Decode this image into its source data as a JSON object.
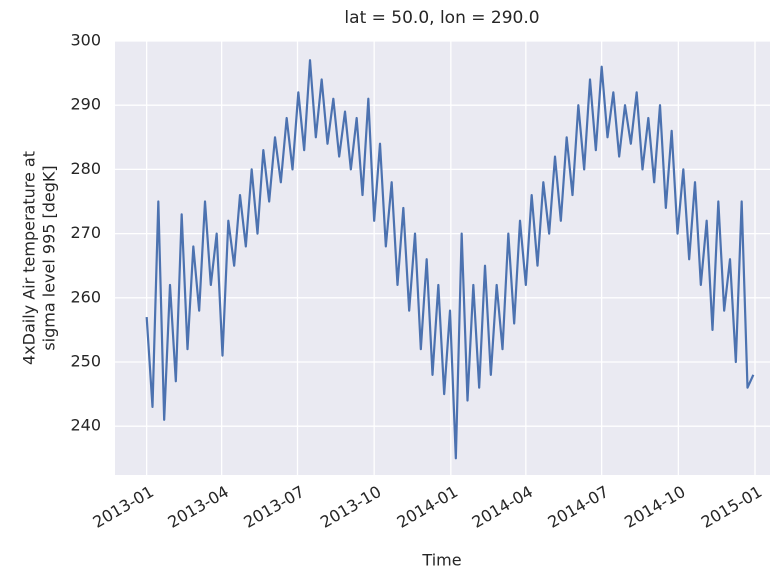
{
  "chart_data": {
    "type": "line",
    "title": "lat = 50.0, lon = 290.0",
    "xlabel": "Time",
    "ylabel": [
      "4xDaily Air temperature at",
      "sigma level 995 [degK]"
    ],
    "color": "#4c72b0",
    "grid": true,
    "xlim": [
      "2012-11-24",
      "2015-01-19"
    ],
    "ylim": [
      232.4,
      300
    ],
    "yticks": [
      240,
      250,
      260,
      270,
      280,
      290,
      300
    ],
    "xticks": [
      {
        "value": "2013-01-01",
        "label": "2013-01"
      },
      {
        "value": "2013-04-01",
        "label": "2013-04"
      },
      {
        "value": "2013-07-01",
        "label": "2013-07"
      },
      {
        "value": "2013-10-01",
        "label": "2013-10"
      },
      {
        "value": "2014-01-01",
        "label": "2014-01"
      },
      {
        "value": "2014-04-01",
        "label": "2014-04"
      },
      {
        "value": "2014-07-01",
        "label": "2014-07"
      },
      {
        "value": "2014-10-01",
        "label": "2014-10"
      },
      {
        "value": "2015-01-01",
        "label": "2015-01"
      }
    ],
    "x": [
      "2013-01-01",
      "2013-01-08",
      "2013-01-15",
      "2013-01-22",
      "2013-01-29",
      "2013-02-05",
      "2013-02-12",
      "2013-02-19",
      "2013-02-26",
      "2013-03-05",
      "2013-03-12",
      "2013-03-19",
      "2013-03-26",
      "2013-04-02",
      "2013-04-09",
      "2013-04-16",
      "2013-04-23",
      "2013-04-30",
      "2013-05-07",
      "2013-05-14",
      "2013-05-21",
      "2013-05-28",
      "2013-06-04",
      "2013-06-11",
      "2013-06-18",
      "2013-06-25",
      "2013-07-02",
      "2013-07-09",
      "2013-07-16",
      "2013-07-23",
      "2013-07-30",
      "2013-08-06",
      "2013-08-13",
      "2013-08-20",
      "2013-08-27",
      "2013-09-03",
      "2013-09-10",
      "2013-09-17",
      "2013-09-24",
      "2013-10-01",
      "2013-10-08",
      "2013-10-15",
      "2013-10-22",
      "2013-10-29",
      "2013-11-05",
      "2013-11-12",
      "2013-11-19",
      "2013-11-26",
      "2013-12-03",
      "2013-12-10",
      "2013-12-17",
      "2013-12-24",
      "2013-12-31",
      "2014-01-07",
      "2014-01-14",
      "2014-01-21",
      "2014-01-28",
      "2014-02-04",
      "2014-02-11",
      "2014-02-18",
      "2014-02-25",
      "2014-03-04",
      "2014-03-11",
      "2014-03-18",
      "2014-03-25",
      "2014-04-01",
      "2014-04-08",
      "2014-04-15",
      "2014-04-22",
      "2014-04-29",
      "2014-05-06",
      "2014-05-13",
      "2014-05-20",
      "2014-05-27",
      "2014-06-03",
      "2014-06-10",
      "2014-06-17",
      "2014-06-24",
      "2014-07-01",
      "2014-07-08",
      "2014-07-15",
      "2014-07-22",
      "2014-07-29",
      "2014-08-05",
      "2014-08-12",
      "2014-08-19",
      "2014-08-26",
      "2014-09-02",
      "2014-09-09",
      "2014-09-16",
      "2014-09-23",
      "2014-09-30",
      "2014-10-07",
      "2014-10-14",
      "2014-10-21",
      "2014-10-28",
      "2014-11-04",
      "2014-11-11",
      "2014-11-18",
      "2014-11-25",
      "2014-12-02",
      "2014-12-09",
      "2014-12-16",
      "2014-12-23",
      "2014-12-30"
    ],
    "values": [
      257,
      243,
      275,
      241,
      262,
      247,
      273,
      252,
      268,
      258,
      275,
      262,
      270,
      251,
      272,
      265,
      276,
      268,
      280,
      270,
      283,
      275,
      285,
      278,
      288,
      280,
      292,
      283,
      297,
      285,
      294,
      284,
      291,
      282,
      289,
      280,
      288,
      276,
      291,
      272,
      284,
      268,
      278,
      262,
      274,
      258,
      270,
      252,
      266,
      248,
      262,
      245,
      258,
      235,
      270,
      244,
      262,
      246,
      265,
      248,
      262,
      252,
      270,
      256,
      272,
      262,
      276,
      265,
      278,
      270,
      282,
      272,
      285,
      276,
      290,
      280,
      294,
      283,
      296,
      285,
      292,
      282,
      290,
      284,
      292,
      280,
      288,
      278,
      290,
      274,
      286,
      270,
      280,
      266,
      278,
      262,
      272,
      255,
      275,
      258,
      266,
      250,
      275,
      246,
      248
    ]
  }
}
